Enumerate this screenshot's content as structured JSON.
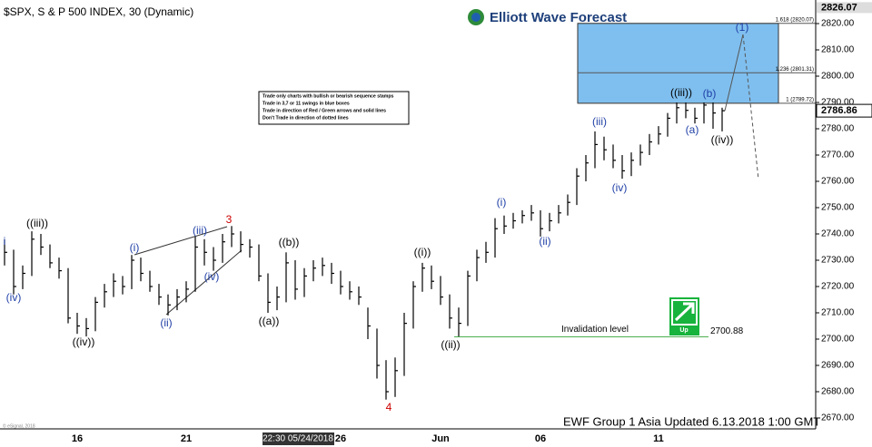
{
  "logo": "Elliott Wave Forecast",
  "notes": [
    "Trade only charts with bullish or bearish sequence stamps",
    "Trade in 3,7 or 11 swings in blue boxes",
    "Trade in direction of Red / Green arrows and solid lines",
    "Don't Trade in direction of dotted lines"
  ],
  "signal": "Up",
  "footer": "EWF Group 1 Asia Updated 6.13.2018 1:00 GMT",
  "source": "© eSignal, 2018",
  "chart_data": {
    "type": "hlc",
    "title": "$SPX, S & P 500 INDEX, 30 (Dynamic)",
    "color": "#000000",
    "categories": [
      null,
      null,
      null,
      null,
      null,
      null,
      null,
      null,
      "16",
      null,
      null,
      null,
      null,
      null,
      null,
      null,
      null,
      null,
      null,
      null,
      "21",
      null,
      null,
      null,
      null,
      null,
      null,
      null,
      null,
      null,
      null,
      null,
      null,
      null,
      null,
      null,
      null,
      "26",
      null,
      null,
      null,
      null,
      null,
      null,
      null,
      null,
      null,
      null,
      "Jun",
      null,
      null,
      null,
      null,
      null,
      null,
      null,
      null,
      null,
      null,
      "06",
      null,
      null,
      null,
      null,
      null,
      null,
      null,
      null,
      null,
      null,
      null,
      null,
      "11",
      null,
      null,
      null,
      null,
      null,
      null,
      null
    ],
    "high": [
      2738,
      2734,
      2728,
      2741,
      2740,
      2736,
      2731,
      2727,
      2710,
      2708,
      2716,
      2721,
      2725,
      2724,
      2732,
      2731,
      2726,
      2721,
      2717,
      2719,
      2722,
      2739,
      2738,
      2735,
      2740,
      2743,
      2741,
      2738,
      2736,
      2725,
      2720,
      2733,
      2730,
      2727,
      2730,
      2731,
      2729,
      2726,
      2722,
      2720,
      2712,
      2704,
      2692,
      2693,
      2710,
      2722,
      2729,
      2728,
      2724,
      2717,
      2712,
      2726,
      2734,
      2737,
      2746,
      2747,
      2748,
      2749,
      2751,
      2749,
      2748,
      2751,
      2755,
      2765,
      2770,
      2779,
      2777,
      2774,
      2770,
      2771,
      2774,
      2778,
      2781,
      2786,
      2790,
      2790,
      2788,
      2790,
      2790,
      2788
    ],
    "low": [
      2728,
      2717,
      2719,
      2724,
      2732,
      2727,
      2723,
      2706,
      2702,
      2701,
      2703,
      2712,
      2716,
      2717,
      2719,
      2722,
      2718,
      2713,
      2709,
      2711,
      2714,
      2718,
      2728,
      2726,
      2729,
      2735,
      2733,
      2731,
      2722,
      2710,
      2711,
      2714,
      2715,
      2716,
      2722,
      2724,
      2721,
      2717,
      2715,
      2713,
      2700,
      2685,
      2677,
      2678,
      2686,
      2704,
      2718,
      2719,
      2713,
      2704,
      2701,
      2705,
      2722,
      2729,
      2731,
      2740,
      2742,
      2744,
      2745,
      2739,
      2741,
      2744,
      2747,
      2751,
      2760,
      2765,
      2768,
      2765,
      2761,
      2762,
      2766,
      2770,
      2774,
      2777,
      2782,
      2784,
      2782,
      2782,
      2780,
      2779
    ],
    "close": [
      2733,
      2720,
      2725,
      2738,
      2735,
      2729,
      2726,
      2708,
      2705,
      2704,
      2714,
      2718,
      2722,
      2720,
      2730,
      2725,
      2720,
      2716,
      2713,
      2716,
      2719,
      2735,
      2733,
      2730,
      2737,
      2740,
      2736,
      2735,
      2724,
      2714,
      2716,
      2729,
      2719,
      2724,
      2727,
      2728,
      2725,
      2720,
      2718,
      2716,
      2705,
      2690,
      2680,
      2688,
      2706,
      2720,
      2727,
      2722,
      2716,
      2708,
      2706,
      2724,
      2731,
      2733,
      2742,
      2743,
      2745,
      2747,
      2748,
      2742,
      2745,
      2748,
      2752,
      2762,
      2767,
      2774,
      2772,
      2768,
      2764,
      2768,
      2771,
      2775,
      2778,
      2784,
      2788,
      2787,
      2784,
      2789,
      2786,
      2786.86
    ],
    "last_price": 2786.86,
    "ylim": [
      2666,
      2826.07
    ],
    "yticks": [
      {
        "value": 2670,
        "label": "2670.00"
      },
      {
        "value": 2680,
        "label": "2680.00"
      },
      {
        "value": 2690,
        "label": "2690.00"
      },
      {
        "value": 2700,
        "label": "2700.00"
      },
      {
        "value": 2710,
        "label": "2710.00"
      },
      {
        "value": 2720,
        "label": "2720.00"
      },
      {
        "value": 2730,
        "label": "2730.00"
      },
      {
        "value": 2740,
        "label": "2740.00"
      },
      {
        "value": 2750,
        "label": "2750.00"
      },
      {
        "value": 2760,
        "label": "2760.00"
      },
      {
        "value": 2770,
        "label": "2770.00"
      },
      {
        "value": 2780,
        "label": "2780.00"
      },
      {
        "value": 2790,
        "label": "2790.00"
      },
      {
        "value": 2800,
        "label": "2800.00"
      },
      {
        "value": 2810,
        "label": "2810.00"
      },
      {
        "value": 2820,
        "label": "2820.00"
      }
    ],
    "crosshair_label": "22:30 05/24/2018",
    "fib_levels": [
      {
        "value": 2820.07,
        "label": "1.618 (2820.07)"
      },
      {
        "value": 2801.31,
        "label": "1.236 (2801.31)"
      },
      {
        "value": 2789.72,
        "label": "1 (2789.72)"
      }
    ],
    "box_color": "#7fbfef",
    "invalidation_label": "Invalidation level",
    "invalidation_value": 2700.88,
    "invalidation_color": "#4caf50",
    "wave_labels": [
      {
        "text": "i",
        "color": "#1f3fa6"
      },
      {
        "text": "(iv)",
        "color": "#1f3fa6"
      },
      {
        "text": "((iii))",
        "color": "#000000"
      },
      {
        "text": "((iv))",
        "color": "#000000"
      },
      {
        "text": "(i)",
        "color": "#1f3fa6"
      },
      {
        "text": "(ii)",
        "color": "#1f3fa6"
      },
      {
        "text": "(iii)",
        "color": "#1f3fa6"
      },
      {
        "text": "(iv)",
        "color": "#1f3fa6"
      },
      {
        "text": "3",
        "color": "#cc0000"
      },
      {
        "text": "((b))",
        "color": "#000000"
      },
      {
        "text": "((a))",
        "color": "#000000"
      },
      {
        "text": "4",
        "color": "#cc0000"
      },
      {
        "text": "((i))",
        "color": "#000000"
      },
      {
        "text": "((ii))",
        "color": "#000000"
      },
      {
        "text": "(i)",
        "color": "#1f3fa6"
      },
      {
        "text": "(ii)",
        "color": "#1f3fa6"
      },
      {
        "text": "(iii)",
        "color": "#1f3fa6"
      },
      {
        "text": "(iv)",
        "color": "#1f3fa6"
      },
      {
        "text": "((iii))",
        "color": "#000000"
      },
      {
        "text": "(b)",
        "color": "#1f3fa6"
      },
      {
        "text": "(a)",
        "color": "#1f3fa6"
      },
      {
        "text": "((iv))",
        "color": "#000000"
      },
      {
        "text": "(1)",
        "color": "#1f3fa6"
      }
    ]
  }
}
